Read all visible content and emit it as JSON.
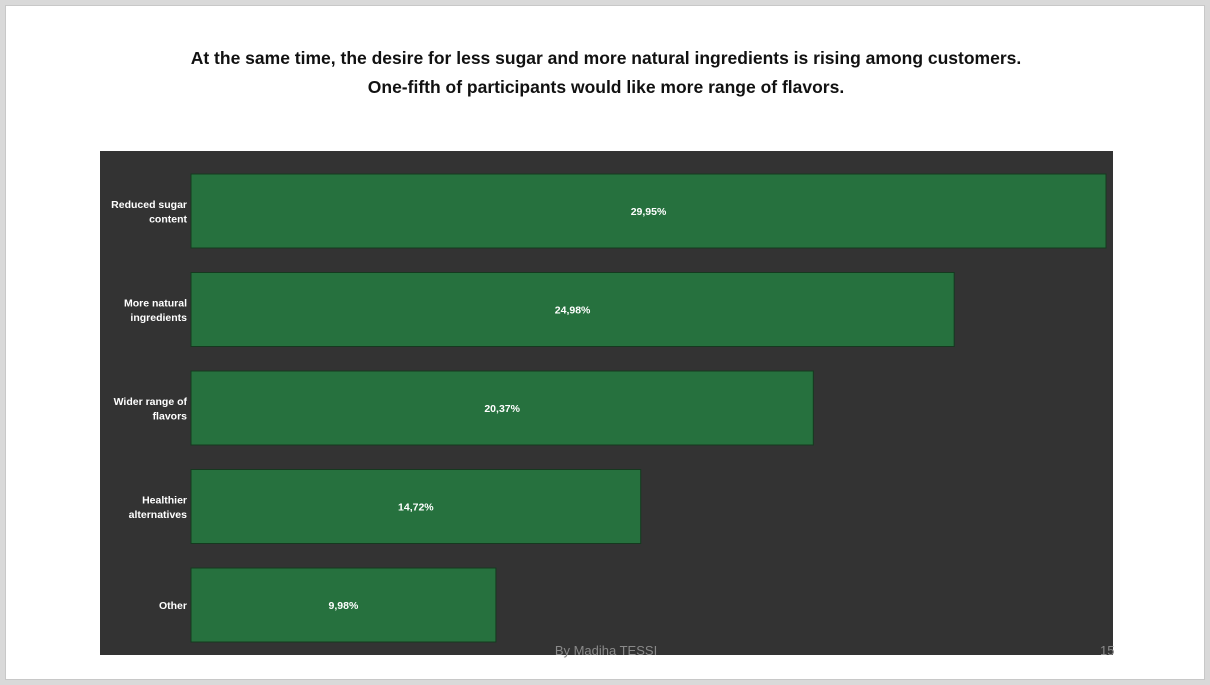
{
  "slide": {
    "title_line1": "At the same time, the desire for less sugar and more natural ingredients is rising among customers.",
    "title_line2": "One-fifth of participants would like more range of flavors.",
    "footer": "By Madiha TESSI",
    "page_number": "15"
  },
  "colors": {
    "bar": "#26713e",
    "bar_border": "#15391f",
    "chart_background": "#333333",
    "label_text": "#ffffff"
  },
  "chart_data": {
    "type": "bar",
    "orientation": "horizontal",
    "categories": [
      [
        "Reduced sugar",
        "content"
      ],
      [
        "More natural",
        "ingredients"
      ],
      [
        "Wider range of",
        "flavors"
      ],
      [
        "Healthier",
        "alternatives"
      ],
      [
        "Other"
      ]
    ],
    "values": [
      29.95,
      24.98,
      20.37,
      14.72,
      9.98
    ],
    "data_labels": [
      "29,95%",
      "24,98%",
      "20,37%",
      "14,72%",
      "9,98%"
    ],
    "xlim": [
      0,
      29.95
    ],
    "grid": false,
    "legend": "none"
  }
}
